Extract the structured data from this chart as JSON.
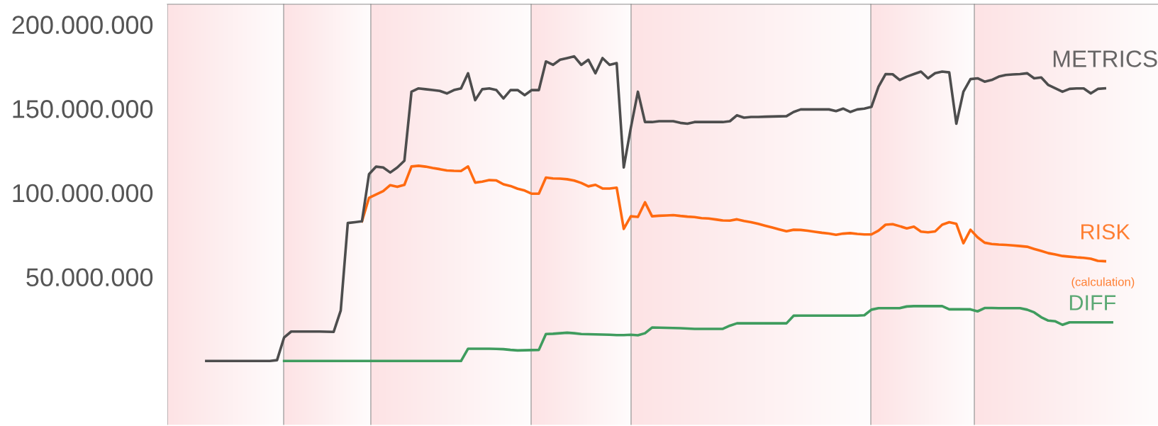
{
  "chart_data": {
    "type": "line",
    "categories": [
      null,
      null,
      null,
      null,
      null,
      null,
      null,
      null,
      null,
      null,
      null,
      null,
      null,
      null,
      null,
      null,
      null,
      null,
      null,
      null,
      null,
      null,
      null,
      null,
      null,
      null,
      null,
      null,
      null,
      null,
      null,
      null,
      null,
      null,
      null,
      null,
      null,
      null,
      null,
      null,
      null,
      null,
      null,
      null,
      null,
      null,
      null,
      null,
      null,
      null,
      null,
      null,
      null,
      null,
      null,
      null,
      null,
      null,
      null,
      null,
      null,
      null,
      null,
      null,
      null,
      null,
      null,
      null,
      null,
      null,
      null,
      null,
      null,
      null,
      null,
      null,
      null,
      null,
      null,
      null,
      null,
      null,
      null,
      null,
      null,
      null,
      null,
      null,
      null,
      null,
      null,
      null,
      null,
      null,
      null,
      null,
      null,
      null,
      null,
      null,
      null,
      null,
      null,
      null,
      null,
      null,
      null,
      null,
      null,
      null,
      null,
      null,
      null,
      null,
      null,
      null,
      null,
      null,
      null,
      null,
      null,
      null,
      null,
      null,
      null,
      null,
      null,
      null,
      null,
      null,
      null,
      null,
      null,
      null,
      null,
      null,
      null,
      null,
      null,
      null
    ],
    "series": [
      {
        "name": "METRICS",
        "color": "#4d4d4d",
        "values": [
          null,
          null,
          null,
          null,
          null,
          0,
          0,
          0,
          0,
          0,
          0,
          0,
          0,
          0,
          0,
          500000,
          14000000,
          17500000,
          17500000,
          17500000,
          17500000,
          17500000,
          17400000,
          17300000,
          30000000,
          82000000,
          82500000,
          83000000,
          111000000,
          115500000,
          115000000,
          112000000,
          115000000,
          119000000,
          160000000,
          162000000,
          161500000,
          161000000,
          160500000,
          159000000,
          161000000,
          162000000,
          171000000,
          155000000,
          161500000,
          162000000,
          161000000,
          156000000,
          161000000,
          161000000,
          158000000,
          161000000,
          161000000,
          178000000,
          176000000,
          179000000,
          180000000,
          181000000,
          176000000,
          179000000,
          171000000,
          180000000,
          176000000,
          177000000,
          115000000,
          138600000,
          160000000,
          142000000,
          142000000,
          142500000,
          142500000,
          142500000,
          141500000,
          141000000,
          142000000,
          142000000,
          142000000,
          142000000,
          142000000,
          142500000,
          146000000,
          144600000,
          145000000,
          145000000,
          145200000,
          145300000,
          145400000,
          145500000,
          148000000,
          149500000,
          149500000,
          149500000,
          149500000,
          149500000,
          148500000,
          150000000,
          148000000,
          149500000,
          150000000,
          151000000,
          163000000,
          170500000,
          170400000,
          167000000,
          169000000,
          170500000,
          172000000,
          168000000,
          171000000,
          172000000,
          171500000,
          141000000,
          160000000,
          167500000,
          168000000,
          166000000,
          167000000,
          169000000,
          170000000,
          170300000,
          170500000,
          171000000,
          168000000,
          168500000,
          164000000,
          162000000,
          160000000,
          161700000,
          162000000,
          162000000,
          159000000,
          161700000,
          162000000,
          null,
          null,
          null,
          null,
          null,
          null,
          null
        ]
      },
      {
        "name": "RISK",
        "color": "#ff6a10",
        "values": [
          null,
          null,
          null,
          null,
          null,
          null,
          null,
          null,
          null,
          null,
          null,
          null,
          null,
          null,
          null,
          null,
          null,
          null,
          null,
          null,
          null,
          null,
          null,
          null,
          null,
          null,
          null,
          83000000,
          97000000,
          99000000,
          101000000,
          104500000,
          103500000,
          104700000,
          115600000,
          116000000,
          115500000,
          114700000,
          114000000,
          113200000,
          113000000,
          112900000,
          115600000,
          106000000,
          106600000,
          107500000,
          107300000,
          105000000,
          104000000,
          102400000,
          101300000,
          99400000,
          99400000,
          109000000,
          108500000,
          108400000,
          108000000,
          107200000,
          105800000,
          103800000,
          104700000,
          102500000,
          102500000,
          103000000,
          78500000,
          86000000,
          85600000,
          94300000,
          86000000,
          86300000,
          86500000,
          86700000,
          86200000,
          85800000,
          85500000,
          84900000,
          84700000,
          84100000,
          83500000,
          83400000,
          84200000,
          83200000,
          82500000,
          81500000,
          80400000,
          79300000,
          78200000,
          77100000,
          78000000,
          77900000,
          77400000,
          76800000,
          76200000,
          75700000,
          75000000,
          75700000,
          76000000,
          75500000,
          75200000,
          75200000,
          77500000,
          81000000,
          81300000,
          80100000,
          78800000,
          79800000,
          76900000,
          76500000,
          77000000,
          81000000,
          82500000,
          81500000,
          70000000,
          78000000,
          73500000,
          70300000,
          69500000,
          69200000,
          69000000,
          68700000,
          68300000,
          67900000,
          66600000,
          65400000,
          64100000,
          63300000,
          62400000,
          62000000,
          61600000,
          61300000,
          60800000,
          59500000,
          59300000,
          null,
          null,
          null,
          null,
          null,
          null,
          null
        ]
      },
      {
        "name": "DIFF",
        "color": "#3f9c5e",
        "values": [
          null,
          null,
          null,
          null,
          null,
          null,
          null,
          null,
          null,
          null,
          null,
          null,
          null,
          null,
          null,
          null,
          0,
          0,
          0,
          0,
          0,
          0,
          0,
          0,
          0,
          0,
          0,
          0,
          0,
          0,
          0,
          0,
          0,
          0,
          0,
          0,
          0,
          0,
          0,
          0,
          0,
          0,
          7300000,
          7300000,
          7300000,
          7300000,
          7200000,
          7000000,
          6600000,
          6300000,
          6400000,
          6500000,
          6600000,
          16000000,
          16200000,
          16500000,
          16800000,
          16500000,
          16000000,
          15900000,
          15800000,
          15700000,
          15600000,
          15400000,
          15400000,
          15600000,
          15300000,
          16500000,
          19900000,
          19800000,
          19700000,
          19600000,
          19500000,
          19300000,
          19100000,
          19100000,
          19100000,
          19100000,
          19100000,
          21000000,
          22400000,
          22400000,
          22400000,
          22400000,
          22400000,
          22400000,
          22400000,
          22400000,
          26900000,
          27000000,
          27000000,
          27000000,
          27000000,
          27000000,
          27000000,
          27000000,
          27000000,
          27000000,
          27200000,
          30500000,
          31400000,
          31400000,
          31400000,
          31400000,
          32400000,
          32600000,
          32600000,
          32600000,
          32600000,
          32600000,
          30700000,
          30700000,
          30700000,
          30700000,
          29500000,
          31500000,
          31500000,
          31400000,
          31400000,
          31400000,
          31400000,
          30500000,
          28900000,
          26000000,
          24000000,
          23600000,
          21500000,
          23000000,
          23000000,
          23000000,
          23000000,
          23000000,
          23000000,
          23000000,
          null,
          null,
          null,
          null,
          null,
          null
        ]
      }
    ],
    "ylim": [
      -38000000,
      212000000
    ],
    "yticks": [
      {
        "value": 50000000,
        "label": "50.000.000"
      },
      {
        "value": 100000000,
        "label": "100.000.000"
      },
      {
        "value": 150000000,
        "label": "150.000.000"
      },
      {
        "value": 200000000,
        "label": "200.000.000"
      }
    ],
    "tick_labels": "y",
    "grid": false,
    "legend": false,
    "annotations": [
      "(calculation)"
    ]
  }
}
